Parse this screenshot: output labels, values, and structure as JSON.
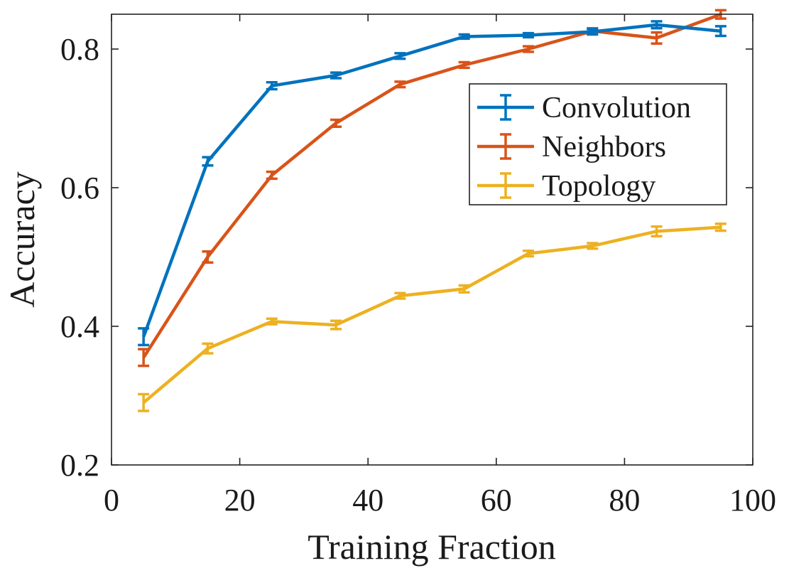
{
  "chart_data": {
    "type": "line",
    "title": "",
    "xlabel": "Training Fraction",
    "ylabel": "Accuracy",
    "xlim": [
      0,
      100
    ],
    "ylim": [
      0.2,
      0.85
    ],
    "xticks": [
      0,
      20,
      40,
      60,
      80,
      100
    ],
    "xtick_labels": [
      "0",
      "20",
      "40",
      "60",
      "80",
      "100"
    ],
    "yticks": [
      0.2,
      0.4,
      0.6,
      0.8
    ],
    "ytick_labels": [
      "0.2",
      "0.4",
      "0.6",
      "0.8"
    ],
    "grid": false,
    "legend_position": "top-right",
    "x": [
      5,
      15,
      25,
      35,
      45,
      55,
      65,
      75,
      85,
      95
    ],
    "series": [
      {
        "name": "Convolution",
        "color": "#0072BD",
        "values": [
          0.385,
          0.638,
          0.747,
          0.762,
          0.79,
          0.818,
          0.82,
          0.825,
          0.835,
          0.826
        ],
        "errors": [
          0.012,
          0.006,
          0.005,
          0.004,
          0.004,
          0.003,
          0.003,
          0.004,
          0.005,
          0.007
        ]
      },
      {
        "name": "Neighbors",
        "color": "#D95319",
        "values": [
          0.355,
          0.5,
          0.618,
          0.693,
          0.749,
          0.777,
          0.8,
          0.826,
          0.816,
          0.85
        ],
        "errors": [
          0.012,
          0.008,
          0.005,
          0.005,
          0.004,
          0.004,
          0.004,
          0.004,
          0.008,
          0.006
        ]
      },
      {
        "name": "Topology",
        "color": "#EDB120",
        "values": [
          0.29,
          0.368,
          0.407,
          0.402,
          0.444,
          0.454,
          0.505,
          0.516,
          0.537,
          0.543
        ],
        "errors": [
          0.012,
          0.007,
          0.004,
          0.006,
          0.004,
          0.005,
          0.004,
          0.004,
          0.007,
          0.005
        ]
      }
    ]
  }
}
